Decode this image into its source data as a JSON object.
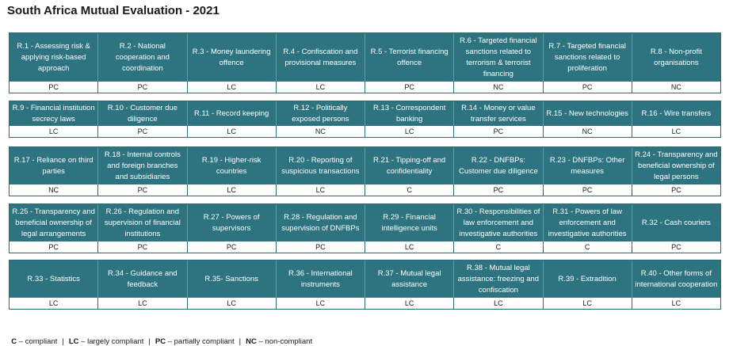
{
  "title": "South Africa Mutual Evaluation - 2021",
  "blocks": [
    {
      "items": [
        {
          "label": "R.1 - Assessing risk & applying risk-based approach",
          "rating": "PC"
        },
        {
          "label": "R.2 - National cooperation and coordination",
          "rating": "PC"
        },
        {
          "label": "R.3 - Money laundering offence",
          "rating": "LC"
        },
        {
          "label": "R.4 - Confiscation and provisional measures",
          "rating": "LC"
        },
        {
          "label": "R.5 - Terrorist financing offence",
          "rating": "PC"
        },
        {
          "label": "R.6 - Targeted financial sanctions related to terrorism & terrorist financing",
          "rating": "NC"
        },
        {
          "label": "R.7 - Targeted financial sanctions related to proliferation",
          "rating": "PC"
        },
        {
          "label": "R.8 - Non-profit organisations",
          "rating": "NC"
        }
      ]
    },
    {
      "items": [
        {
          "label": "R.9 - Financial institution secrecy laws",
          "rating": "LC"
        },
        {
          "label": "R.10 - Customer due diligence",
          "rating": "PC"
        },
        {
          "label": "R.11 - Record keeping",
          "rating": "LC"
        },
        {
          "label": "R.12 - Politically exposed persons",
          "rating": "NC"
        },
        {
          "label": "R.13 - Correspondent banking",
          "rating": "LC"
        },
        {
          "label": "R.14 - Money or value transfer services",
          "rating": "PC"
        },
        {
          "label": "R.15 - New technologies",
          "rating": "NC"
        },
        {
          "label": "R.16 - Wire transfers",
          "rating": "LC"
        }
      ]
    },
    {
      "items": [
        {
          "label": "R.17 - Reliance on third parties",
          "rating": "NC"
        },
        {
          "label": "R.18 - Internal controls and foreign branches and subsidiaries",
          "rating": "PC"
        },
        {
          "label": "R.19 - Higher-risk countries",
          "rating": "LC"
        },
        {
          "label": "R.20 - Reporting of suspicious transactions",
          "rating": "LC"
        },
        {
          "label": "R.21 - Tipping-off and confidentiality",
          "rating": "C"
        },
        {
          "label": "R.22 - DNFBPs: Customer due diligence",
          "rating": "PC"
        },
        {
          "label": "R.23 - DNFBPs: Other measures",
          "rating": "PC"
        },
        {
          "label": "R.24 - Transparency and beneficial ownership of legal persons",
          "rating": "PC"
        }
      ]
    },
    {
      "items": [
        {
          "label": "R.25 - Transparency and beneficial ownership of legal arrangements",
          "rating": "PC"
        },
        {
          "label": "R.26 - Regulation and supervision of financial institutions",
          "rating": "PC"
        },
        {
          "label": "R.27 - Powers of supervisors",
          "rating": "PC"
        },
        {
          "label": "R.28 - Regulation and supervision of DNFBPs",
          "rating": "PC"
        },
        {
          "label": "R.29 - Financial intelligence units",
          "rating": "LC"
        },
        {
          "label": "R.30 - Responsibilities of law enforcement and investigative authorities",
          "rating": "C"
        },
        {
          "label": "R.31 - Powers of law enforcement and investigative authorities",
          "rating": "C"
        },
        {
          "label": "R.32 - Cash couriers",
          "rating": "PC"
        }
      ]
    },
    {
      "items": [
        {
          "label": "R.33 - Statistics",
          "rating": "LC"
        },
        {
          "label": "R.34 - Guidance and feedback",
          "rating": "LC"
        },
        {
          "label": "R.35- Sanctions",
          "rating": "LC"
        },
        {
          "label": "R.36 - International instruments",
          "rating": "LC"
        },
        {
          "label": "R.37 - Mutual legal assistance",
          "rating": "LC"
        },
        {
          "label": "R.38 - Mutual legal assistance: freezing and confiscation",
          "rating": "LC"
        },
        {
          "label": "R.39 - Extradition",
          "rating": "LC"
        },
        {
          "label": "R.40 - Other forms of international cooperation",
          "rating": "LC"
        }
      ]
    }
  ],
  "legend": [
    {
      "code": "C",
      "text": " – compliant"
    },
    {
      "code": "LC",
      "text": " – largely compliant"
    },
    {
      "code": "PC",
      "text": " – partially compliant"
    },
    {
      "code": "NC",
      "text": " – non-compliant"
    }
  ],
  "legend_separator": "|"
}
